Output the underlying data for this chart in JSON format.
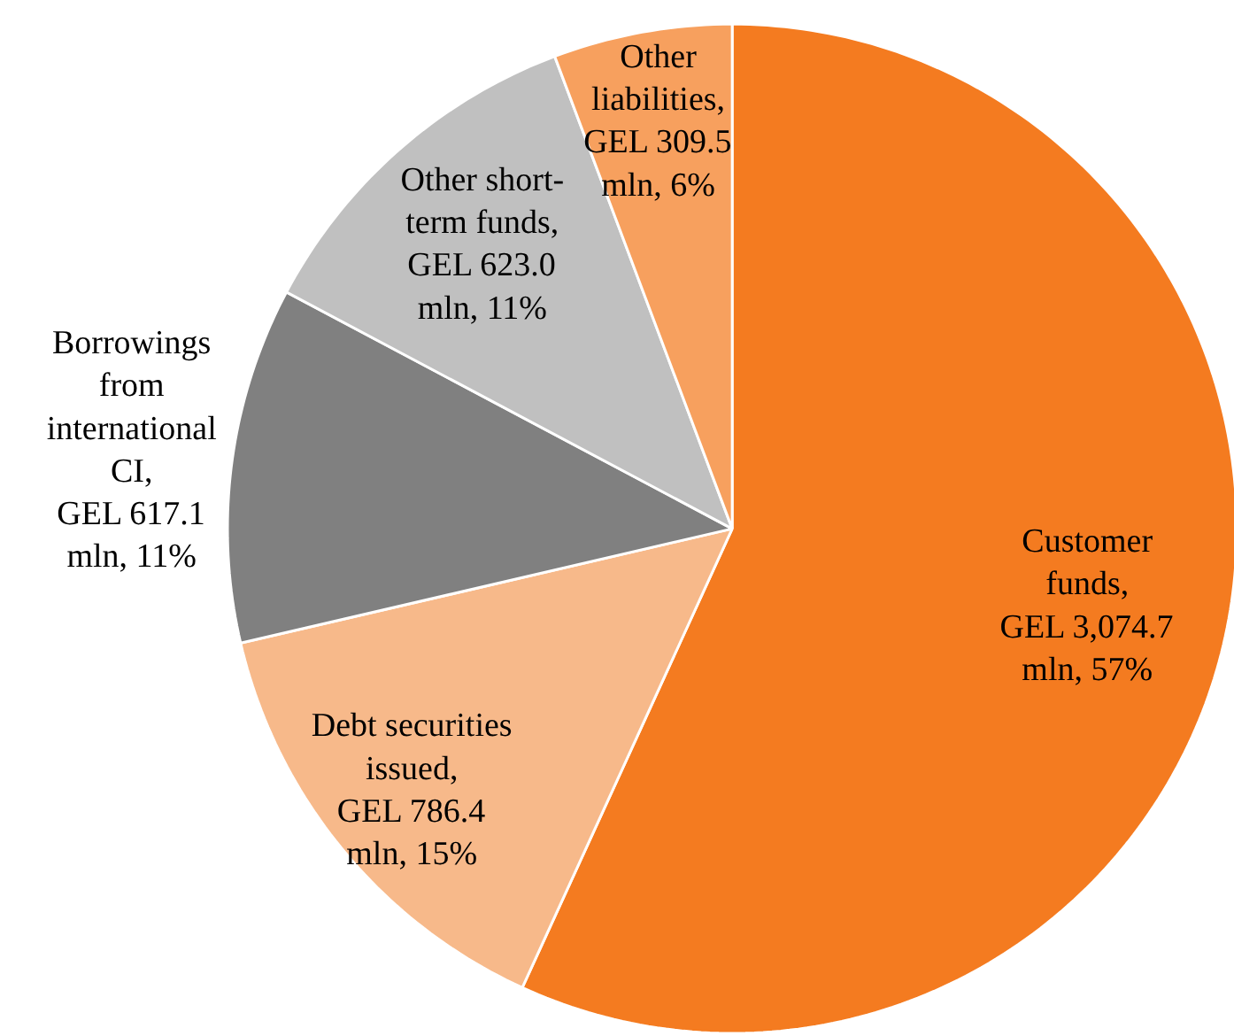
{
  "chart_data": {
    "type": "pie",
    "categories": [
      "Customer funds, GEL 3,074.7 mln, 57%",
      "Debt securities issued, GEL 786.4 mln, 15%",
      "Borrowings from international CI, GEL 617.1 mln, 11%",
      "Other short-term funds, GEL 623.0 mln, 11%",
      "Other liabilities, GEL 309.5 mln, 6%"
    ],
    "values": [
      3074.7,
      786.4,
      617.1,
      623.0,
      309.5
    ],
    "colors": [
      "#f47b20",
      "#f7b98a",
      "#808080",
      "#c0c0c0",
      "#f7a05e"
    ]
  }
}
